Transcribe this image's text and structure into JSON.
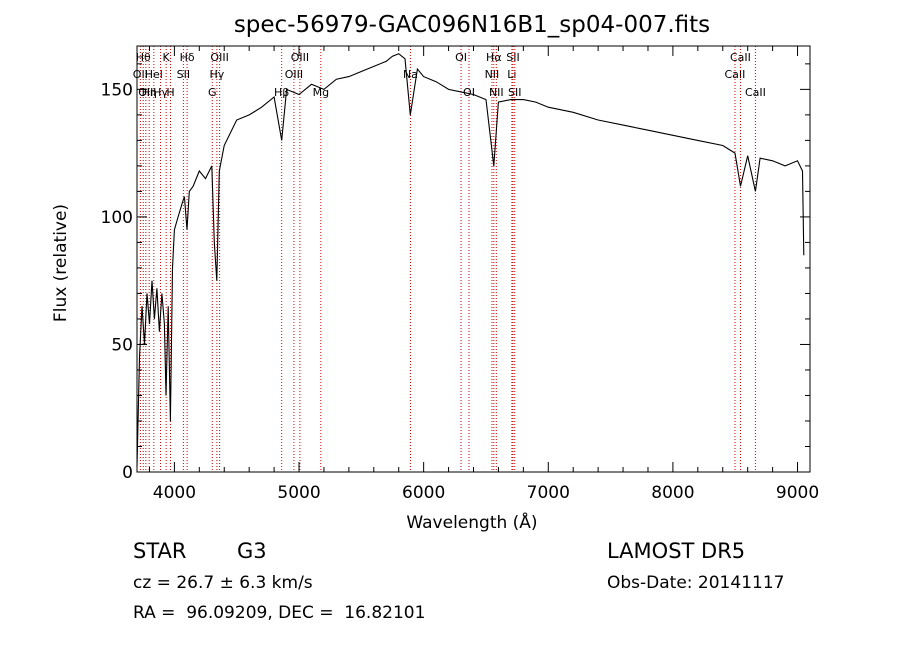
{
  "chart_data": {
    "type": "line",
    "title": "spec-56979-GAC096N16B1_sp04-007.fits",
    "xlabel": "Wavelength (Å)",
    "ylabel": "Flux (relative)",
    "xlim": [
      3700,
      9100
    ],
    "ylim": [
      0,
      167
    ],
    "x_ticks": [
      4000,
      5000,
      6000,
      7000,
      8000,
      9000
    ],
    "y_ticks": [
      0,
      50,
      100,
      150
    ],
    "grid": false,
    "line_color": "#000000",
    "marker_color": "#cc0000",
    "series": [
      {
        "x": [
          3700,
          3720,
          3740,
          3760,
          3780,
          3800,
          3820,
          3840,
          3860,
          3880,
          3900,
          3920,
          3933,
          3950,
          3968,
          3985,
          4000,
          4030,
          4060,
          4080,
          4101,
          4120,
          4150,
          4200,
          4250,
          4300,
          4320,
          4340,
          4360,
          4400,
          4500,
          4600,
          4700,
          4800,
          4861,
          4900,
          5000,
          5100,
          5200,
          5300,
          5400,
          5500,
          5600,
          5700,
          5750,
          5800,
          5850,
          5893,
          5950,
          6000,
          6100,
          6200,
          6300,
          6400,
          6500,
          6563,
          6600,
          6700,
          6800,
          6900,
          7000,
          7200,
          7400,
          7600,
          7800,
          8000,
          8200,
          8400,
          8498,
          8542,
          8600,
          8662,
          8700,
          8800,
          8900,
          9000,
          9040,
          9050
        ],
        "y": [
          2,
          45,
          65,
          50,
          70,
          58,
          75,
          60,
          72,
          55,
          70,
          58,
          30,
          65,
          20,
          80,
          95,
          100,
          105,
          108,
          95,
          110,
          112,
          118,
          115,
          120,
          90,
          75,
          118,
          128,
          138,
          140,
          143,
          147,
          130,
          150,
          148,
          152,
          150,
          154,
          155,
          157,
          159,
          161,
          163,
          164,
          162,
          140,
          158,
          155,
          153,
          150,
          149,
          148,
          146,
          120,
          145,
          146,
          146,
          145,
          143,
          141,
          138,
          136,
          134,
          132,
          130,
          128,
          125,
          112,
          124,
          110,
          123,
          122,
          120,
          122,
          118,
          85
        ]
      }
    ],
    "line_markers": [
      {
        "x": 3727,
        "labels": [
          "OII"
        ],
        "rows": [
          1
        ]
      },
      {
        "x": 3750,
        "labels": [
          "Hθ"
        ],
        "rows": [
          0
        ]
      },
      {
        "x": 3771,
        "labels": [
          "OII"
        ],
        "rows": [
          2
        ]
      },
      {
        "x": 3798,
        "labels": [
          "Hη"
        ],
        "rows": [
          2
        ]
      },
      {
        "x": 3835,
        "labels": [
          "Hel"
        ],
        "rows": [
          1
        ]
      },
      {
        "x": 3889,
        "labels": [
          "Hγ"
        ],
        "rows": [
          2
        ]
      },
      {
        "x": 3934,
        "labels": [
          "K"
        ],
        "rows": [
          0
        ]
      },
      {
        "x": 3969,
        "labels": [
          "H"
        ],
        "rows": [
          2
        ]
      },
      {
        "x": 4072,
        "labels": [
          "SII"
        ],
        "rows": [
          1
        ]
      },
      {
        "x": 4102,
        "labels": [
          "Hδ"
        ],
        "rows": [
          0
        ]
      },
      {
        "x": 4304,
        "labels": [
          "G"
        ],
        "rows": [
          2
        ]
      },
      {
        "x": 4341,
        "labels": [
          "Hγ"
        ],
        "rows": [
          1
        ]
      },
      {
        "x": 4363,
        "labels": [
          "OIII"
        ],
        "rows": [
          0
        ]
      },
      {
        "x": 4861,
        "labels": [
          "Hβ"
        ],
        "rows": [
          2
        ]
      },
      {
        "x": 4959,
        "labels": [
          "OIII"
        ],
        "rows": [
          1
        ]
      },
      {
        "x": 5007,
        "labels": [
          "OIII"
        ],
        "rows": [
          0
        ]
      },
      {
        "x": 5175,
        "labels": [
          "Mg"
        ],
        "rows": [
          2
        ]
      },
      {
        "x": 5894,
        "labels": [
          "Na"
        ],
        "rows": [
          1
        ]
      },
      {
        "x": 6300,
        "labels": [
          "OI"
        ],
        "rows": [
          0
        ]
      },
      {
        "x": 6364,
        "labels": [
          "OI"
        ],
        "rows": [
          2
        ]
      },
      {
        "x": 6548,
        "labels": [
          "NII"
        ],
        "rows": [
          1
        ]
      },
      {
        "x": 6563,
        "labels": [
          "Hα"
        ],
        "rows": [
          0
        ]
      },
      {
        "x": 6583,
        "labels": [
          "NII"
        ],
        "rows": [
          2
        ]
      },
      {
        "x": 6708,
        "labels": [
          "Li"
        ],
        "rows": [
          1
        ]
      },
      {
        "x": 6717,
        "labels": [
          "SII"
        ],
        "rows": [
          0
        ]
      },
      {
        "x": 6731,
        "labels": [
          "SII"
        ],
        "rows": [
          2
        ]
      },
      {
        "x": 8498,
        "labels": [
          "CaII"
        ],
        "rows": [
          1
        ]
      },
      {
        "x": 8542,
        "labels": [
          "CaII"
        ],
        "rows": [
          0
        ]
      },
      {
        "x": 8662,
        "labels": [
          "CaII"
        ],
        "rows": [
          2
        ]
      }
    ]
  },
  "info": {
    "object_class": "STAR",
    "subclass": "G3",
    "survey": "LAMOST DR5",
    "redshift": "cz = 26.7 ± 6.3 km/s",
    "obs_date": "Obs-Date: 20141117",
    "coords": "RA =  96.09209, DEC =  16.82101"
  }
}
